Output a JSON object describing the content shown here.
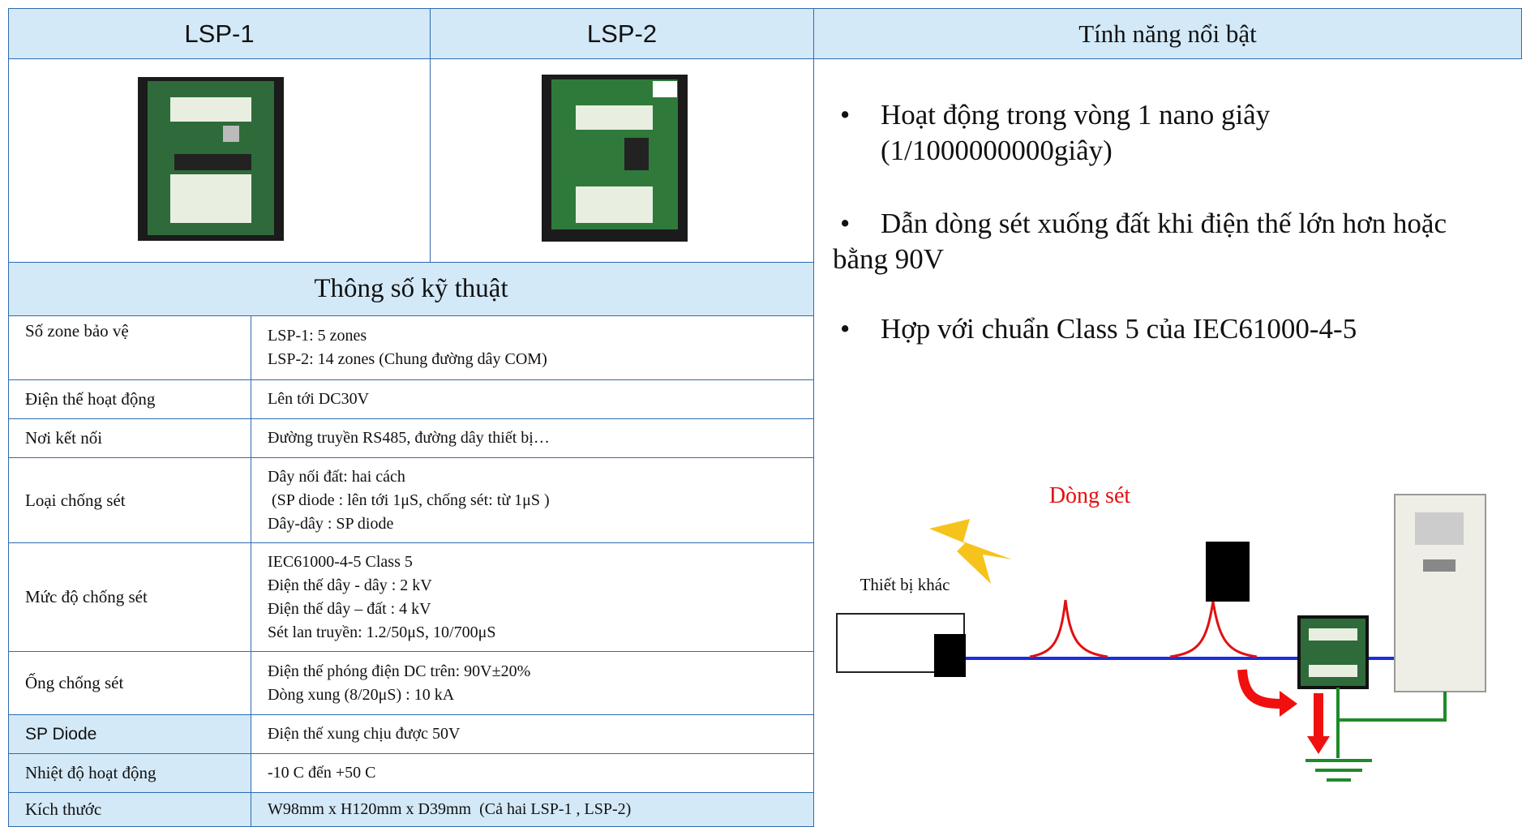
{
  "header": {
    "col1": "LSP-1",
    "col2": "LSP-2",
    "col3": "Tính năng nổi bật"
  },
  "specs": {
    "title": "Thông số kỹ thuật",
    "rows": [
      {
        "label": "Số zone bảo vệ",
        "lines": [
          "LSP-1: 5 zones",
          "LSP-2: 14 zones (Chung đường dây COM)"
        ]
      },
      {
        "label": "Điện thế hoạt động",
        "lines": [
          "Lên tới DC30V"
        ]
      },
      {
        "label": "Nơi kết nối",
        "lines": [
          "Đường truyền RS485, đường dây thiết bị…"
        ]
      },
      {
        "label": "Loại chống sét",
        "lines": [
          "Dây nối đất: hai cách",
          " (SP diode : lên tới 1μS, chống sét: từ 1μS )",
          "Dây-dây : SP diode"
        ]
      },
      {
        "label": "Mức độ chống sét",
        "lines": [
          "IEC61000-4-5 Class 5",
          "Điện thế dây - dây : 2 kV",
          "Điện thế dây – đất : 4 kV",
          "Sét lan truyền: 1.2/50μS, 10/700μS"
        ]
      },
      {
        "label": "Ống chống sét",
        "lines": [
          "Điện thế phóng điện DC trên: 90V±20%",
          "Dòng xung (8/20μS) : 10 kA"
        ]
      },
      {
        "label": "SP Diode",
        "lines": [
          "Điện thế xung chịu được 50V"
        ]
      },
      {
        "label": "Nhiệt độ hoạt động",
        "lines": [
          "-10 C đến +50 C"
        ]
      },
      {
        "label": "Kích thước",
        "lines": [
          "W98mm x H120mm x D39mm  (Cả hai LSP-1 , LSP-2)"
        ]
      }
    ]
  },
  "features": [
    {
      "lines": [
        "Hoạt động trong vòng 1 nano giây",
        "(1/1000000000giây)"
      ]
    },
    {
      "lines": [
        "Dẫn dòng sét xuống đất khi điện thế lớn hơn hoặc",
        "bằng 90V"
      ]
    },
    {
      "lines": [
        "Hợp với chuẩn Class 5 của IEC61000-4-5"
      ]
    }
  ],
  "diagram": {
    "surge_label": "Dòng sét",
    "device_label": "Thiết bị khác"
  }
}
